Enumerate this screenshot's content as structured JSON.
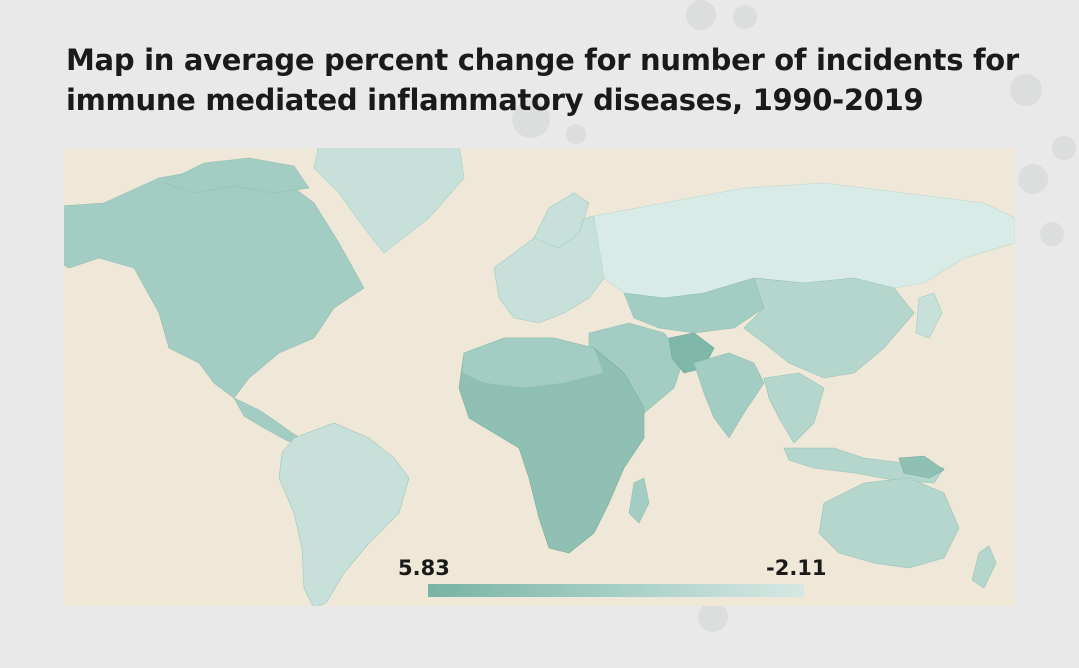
{
  "title": "Map in average percent change for number of incidents for immune mediated inflammatory diseases, 1990-2019",
  "legend": {
    "min_label": "5.83",
    "max_label": "-2.11",
    "high_color": "#77b3a3",
    "low_color": "#d6e8e3"
  },
  "colors": {
    "background": "#e8e9e8",
    "map_ocean": "#efe8d8",
    "region_dark": "#7fb7a9",
    "region_mid": "#a3cdc3",
    "region_light": "#c7e0da",
    "region_lightest": "#d9ebe7"
  }
}
